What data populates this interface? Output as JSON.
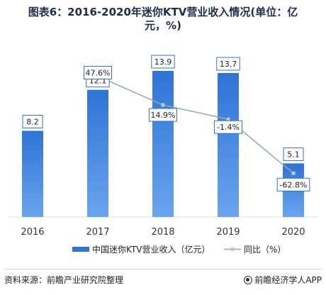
{
  "title_line1": "图表6：2016-2020年迷你KTV营业收入情况(单位：亿",
  "title_line2": "元，%)",
  "chart_data": {
    "type": "bar",
    "categories": [
      "2016",
      "2017",
      "2018",
      "2019",
      "2020"
    ],
    "series": [
      {
        "name": "中国迷你KTV营业收入（亿元）",
        "type": "bar",
        "values": [
          8.2,
          12.1,
          13.9,
          13.7,
          5.1
        ],
        "color": "#2f73d6"
      },
      {
        "name": "同比（%）",
        "type": "line",
        "values": [
          null,
          47.6,
          14.9,
          -1.4,
          -62.8
        ],
        "labels": [
          "",
          "47.6%",
          "14.9%",
          "-1.4%",
          "-62.8%"
        ],
        "color": "#9aa3ad"
      }
    ]
  },
  "source_text": "资料来源：前瞻产业研究院整理",
  "brand_text": "前瞻经济学人APP"
}
